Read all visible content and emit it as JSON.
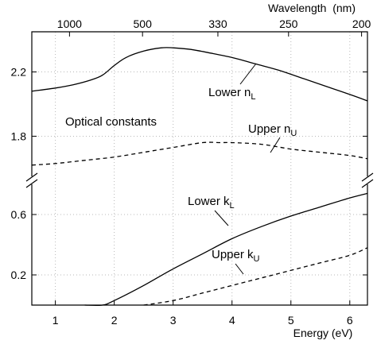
{
  "chart_data": {
    "type": "line",
    "title": "",
    "annotation": "Optical constants",
    "xlabel": "Energy (eV)",
    "x2label": "Wavelength  (nm)",
    "xlim": [
      0.6,
      6.3
    ],
    "xticks": [
      "1",
      "2",
      "3",
      "4",
      "5",
      "6"
    ],
    "x2ticks": [
      {
        "label": "1000",
        "energy": 1.24
      },
      {
        "label": "500",
        "energy": 2.48
      },
      {
        "label": "330",
        "energy": 3.76
      },
      {
        "label": "250",
        "energy": 4.96
      },
      {
        "label": "200",
        "energy": 6.2
      }
    ],
    "broken_axis": true,
    "panels": [
      {
        "name": "n",
        "ylim": [
          1.55,
          2.45
        ],
        "yticks": [
          "1.8",
          "2.2"
        ]
      },
      {
        "name": "k",
        "ylim": [
          0.0,
          0.8
        ],
        "yticks": [
          "0.2",
          "0.6"
        ]
      }
    ],
    "grid": true,
    "series": [
      {
        "name": "Lower nL",
        "label_main": "Lower n",
        "label_sub": "L",
        "panel": "n",
        "style": "solid",
        "x": [
          0.6,
          1.0,
          1.3,
          1.6,
          1.8,
          2.0,
          2.2,
          2.5,
          2.8,
          3.0,
          3.3,
          3.6,
          4.0,
          4.4,
          4.8,
          5.2,
          5.6,
          6.0,
          6.3
        ],
        "y": [
          2.08,
          2.1,
          2.12,
          2.15,
          2.18,
          2.24,
          2.29,
          2.33,
          2.35,
          2.35,
          2.34,
          2.32,
          2.29,
          2.25,
          2.21,
          2.16,
          2.11,
          2.06,
          2.02
        ]
      },
      {
        "name": "Upper nU",
        "label_main": "Upper n",
        "label_sub": "U",
        "panel": "n",
        "style": "dashed",
        "x": [
          0.6,
          1.0,
          1.5,
          2.0,
          2.5,
          3.0,
          3.5,
          3.8,
          4.0,
          4.5,
          5.0,
          5.5,
          6.0,
          6.3
        ],
        "y": [
          1.62,
          1.63,
          1.65,
          1.67,
          1.7,
          1.73,
          1.76,
          1.76,
          1.76,
          1.75,
          1.72,
          1.7,
          1.68,
          1.66
        ]
      },
      {
        "name": "Lower kL",
        "label_main": "Lower k",
        "label_sub": "L",
        "panel": "k",
        "style": "solid",
        "x": [
          1.5,
          1.8,
          2.0,
          2.5,
          3.0,
          3.5,
          4.0,
          4.5,
          5.0,
          5.5,
          6.0,
          6.3
        ],
        "y": [
          0.0,
          0.0,
          0.03,
          0.13,
          0.24,
          0.34,
          0.44,
          0.52,
          0.59,
          0.65,
          0.71,
          0.74
        ]
      },
      {
        "name": "Upper kU",
        "label_main": "Upper k",
        "label_sub": "U",
        "panel": "k",
        "style": "dashed",
        "x": [
          2.5,
          3.0,
          3.5,
          4.0,
          4.5,
          5.0,
          5.5,
          6.0,
          6.3
        ],
        "y": [
          0.0,
          0.03,
          0.08,
          0.13,
          0.18,
          0.23,
          0.28,
          0.33,
          0.38
        ]
      }
    ]
  }
}
